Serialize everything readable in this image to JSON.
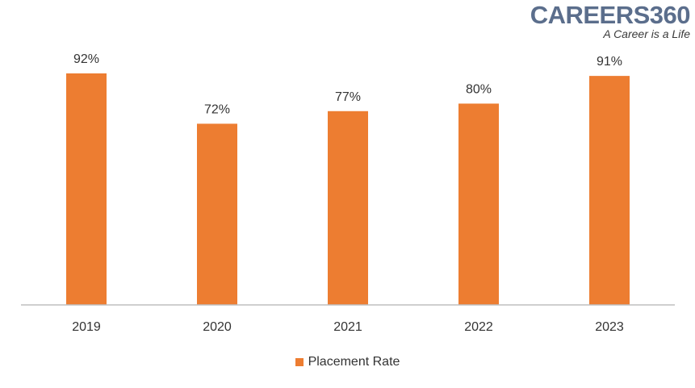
{
  "logo": {
    "name": "CAREERS360",
    "tagline": "A Career is a Life"
  },
  "colors": {
    "bar": "#ed7d31",
    "axis": "#bfbfbf",
    "text": "#333333",
    "logo": "#5b6e8c"
  },
  "chart_data": {
    "type": "bar",
    "categories": [
      "2019",
      "2020",
      "2021",
      "2022",
      "2023"
    ],
    "series": [
      {
        "name": "Placement Rate",
        "values": [
          92,
          72,
          77,
          80,
          91
        ]
      }
    ],
    "data_labels": [
      "92%",
      "72%",
      "77%",
      "80%",
      "91%"
    ],
    "ylim": [
      0,
      100
    ],
    "grid": false,
    "legend_position": "bottom"
  }
}
